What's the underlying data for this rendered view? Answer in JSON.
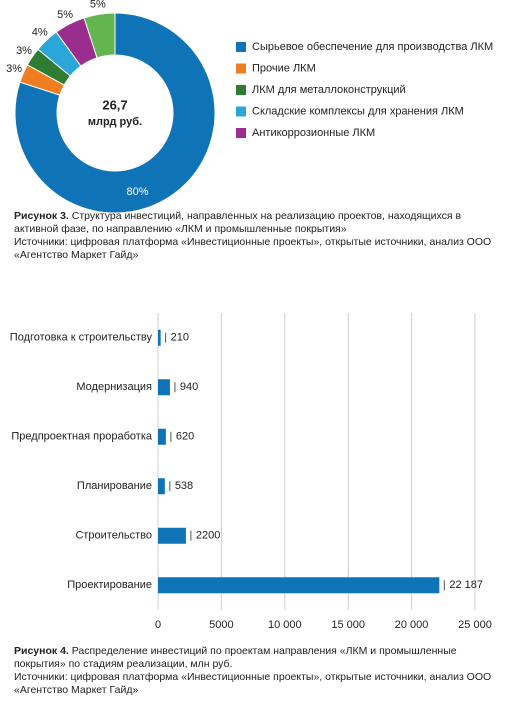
{
  "chart_data": [
    {
      "type": "pie",
      "categories": [
        "Сырьевое обеспечение для производства ЛКМ",
        "Прочие ЛКМ",
        "ЛКМ для металлоконструкций",
        "Складские комплексы для хранения ЛКМ",
        "Антикоррозионные ЛКМ",
        null
      ],
      "values": [
        80,
        3,
        3,
        4,
        5,
        5
      ],
      "value_labels": [
        "80%",
        "3%",
        "3%",
        "4%",
        "5%",
        "5%"
      ],
      "colors": [
        "#0f73b8",
        "#ef7d22",
        "#2f7d32",
        "#2aa6d9",
        "#9b2d8f",
        "#63b550"
      ],
      "center_label": [
        "26,7",
        "млрд руб."
      ],
      "figure_label": "Рисунок 3.",
      "caption": "Структура инвестиций, направленных на реализацию проектов, находящихся в активной фазе, по направлению «ЛКМ и промышленные покрытия»",
      "source": "Источники: цифровая платформа «Инвестиционные проекты», открытые источники, анализ ООО «Агентство Маркет Гайд»"
    },
    {
      "type": "barh",
      "categories": [
        "Подготовка к строительству",
        "Модернизация",
        "Предпроектная проработка",
        "Планирование",
        "Строительство",
        "Проектирование"
      ],
      "values": [
        210,
        940,
        620,
        538,
        2200,
        22187
      ],
      "value_labels": [
        "210",
        "940",
        "620",
        "538",
        "2200",
        "22 187"
      ],
      "color": "#0f73b8",
      "xlim": [
        0,
        25000
      ],
      "xticks": [
        0,
        5000,
        {
          "value": 10000,
          "label": "10 000"
        },
        {
          "value": 15000,
          "label": "15 000"
        },
        {
          "value": 20000,
          "label": "20 000"
        },
        {
          "value": 25000,
          "label": "25 000"
        }
      ],
      "grid": true,
      "figure_label": "Рисунок 4.",
      "caption": "Распределение инвестиций по проектам направления «ЛКМ и промышленные покрытия» по стадиям реализации, млн руб.",
      "source": "Источники: цифровая платформа «Инвестиционные проекты», открытые источники, анализ ООО «Агентство Маркет Гайд»"
    }
  ]
}
